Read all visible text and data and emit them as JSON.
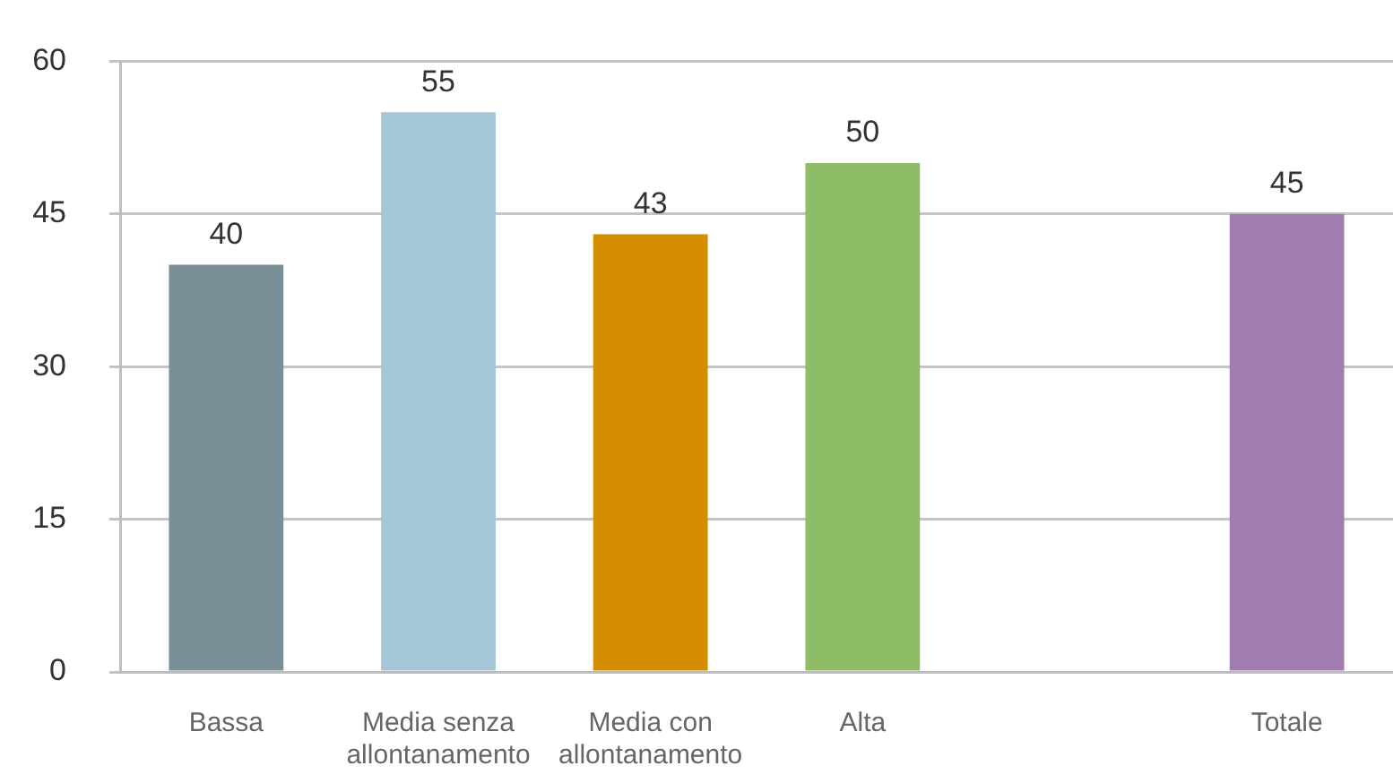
{
  "chart_data": {
    "type": "bar",
    "categories": [
      "Bassa",
      "Media senza allontanamento",
      "Media con allontanamento",
      "Alta",
      null,
      "Totale"
    ],
    "values": [
      40,
      55,
      43,
      50,
      null,
      45
    ],
    "colors": [
      "#7a8f98",
      "#a5c6d6",
      "#d48e00",
      "#8fbd66",
      null,
      "#a07cb1"
    ],
    "ylim": [
      0,
      60
    ],
    "yticks": [
      0,
      15,
      30,
      45,
      60
    ],
    "grid": "y",
    "data_labels": true
  }
}
